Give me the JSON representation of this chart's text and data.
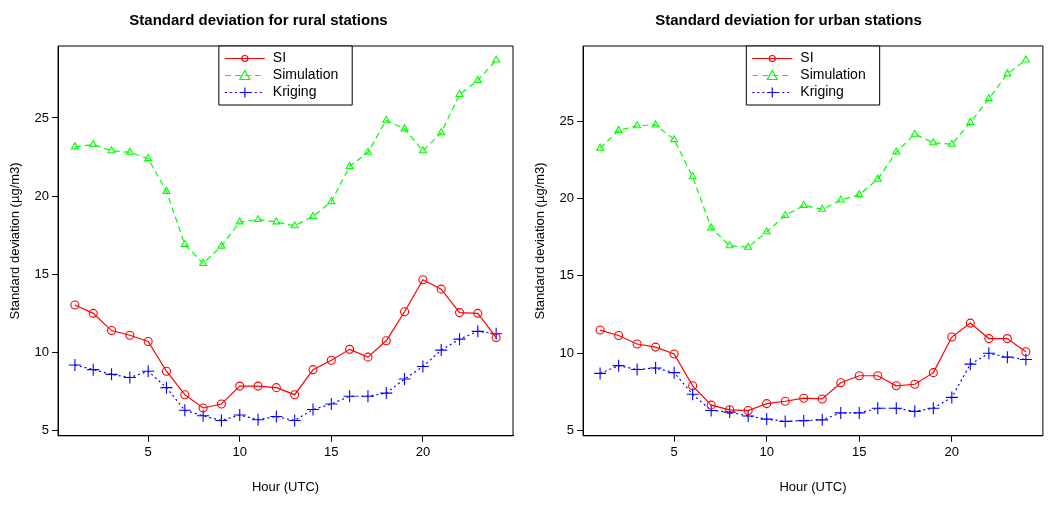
{
  "chart_data": [
    {
      "type": "line",
      "title": "Standard deviation for rural stations",
      "xlabel": "Hour (UTC)",
      "ylabel": "Standard deviation (µg/m3)",
      "x": [
        1,
        2,
        3,
        4,
        5,
        6,
        7,
        8,
        9,
        10,
        11,
        12,
        13,
        14,
        15,
        16,
        17,
        18,
        19,
        20,
        21,
        22,
        23,
        24
      ],
      "series": [
        {
          "name": "SI",
          "color": "#ff0000",
          "marker": "circle",
          "line_style": "solid",
          "values": [
            13.04,
            12.5,
            11.4,
            11.1,
            10.7,
            8.8,
            7.3,
            6.45,
            6.7,
            7.85,
            7.85,
            7.75,
            7.3,
            8.9,
            9.5,
            10.2,
            9.7,
            10.75,
            12.6,
            14.65,
            14.05,
            12.55,
            12.5,
            10.95
          ]
        },
        {
          "name": "Simulation",
          "color": "#00ff00",
          "marker": "triangle",
          "line_style": "dashed",
          "values": [
            23.15,
            23.3,
            22.9,
            22.8,
            22.4,
            20.3,
            16.9,
            15.7,
            16.8,
            18.35,
            18.5,
            18.35,
            18.1,
            18.7,
            19.65,
            21.9,
            22.8,
            24.85,
            24.3,
            22.9,
            24.05,
            26.5,
            27.4,
            28.7
          ]
        },
        {
          "name": "Kriging",
          "color": "#0000ff",
          "marker": "cross",
          "line_style": "dotted",
          "values": [
            9.2,
            8.9,
            8.6,
            8.4,
            8.8,
            7.75,
            6.3,
            5.95,
            5.65,
            6.0,
            5.7,
            5.9,
            5.65,
            6.35,
            6.7,
            7.2,
            7.2,
            7.4,
            8.3,
            9.1,
            10.15,
            10.85,
            11.35,
            11.2
          ]
        }
      ],
      "xlim": [
        0.08,
        24.92
      ],
      "xticks": [
        5,
        10,
        15,
        20
      ],
      "ylim": [
        4.67,
        29.6
      ],
      "yticks": [
        5,
        10,
        15,
        20,
        25
      ],
      "grid": false,
      "legend": "top"
    },
    {
      "type": "line",
      "title": "Standard deviation for urban stations",
      "xlabel": "Hour (UTC)",
      "ylabel": "Standard deviation (µg/m3)",
      "x": [
        1,
        2,
        3,
        4,
        5,
        6,
        7,
        8,
        9,
        10,
        11,
        12,
        13,
        14,
        15,
        16,
        17,
        18,
        19,
        20,
        21,
        22,
        23,
        24
      ],
      "series": [
        {
          "name": "SI",
          "color": "#ff0000",
          "marker": "circle",
          "line_style": "solid",
          "values": [
            11.5,
            11.15,
            10.6,
            10.4,
            9.95,
            7.9,
            6.65,
            6.35,
            6.3,
            6.75,
            6.9,
            7.1,
            7.05,
            8.1,
            8.55,
            8.55,
            7.9,
            8.0,
            8.75,
            11.05,
            11.95,
            10.95,
            10.95,
            10.1
          ]
        },
        {
          "name": "Simulation",
          "color": "#00ff00",
          "marker": "triangle",
          "line_style": "dashed",
          "values": [
            23.25,
            24.4,
            24.7,
            24.75,
            23.8,
            21.4,
            18.1,
            16.95,
            16.85,
            17.85,
            18.9,
            19.55,
            19.3,
            19.9,
            20.25,
            21.25,
            23.0,
            24.15,
            23.6,
            23.5,
            24.9,
            26.45,
            28.05,
            28.95
          ]
        },
        {
          "name": "Kriging",
          "color": "#0000ff",
          "marker": "cross",
          "line_style": "dotted",
          "values": [
            8.7,
            9.2,
            8.95,
            9.05,
            8.75,
            7.35,
            6.3,
            6.2,
            5.95,
            5.75,
            5.6,
            5.65,
            5.7,
            6.15,
            6.15,
            6.45,
            6.45,
            6.25,
            6.45,
            7.15,
            9.3,
            10.0,
            9.75,
            9.6
          ]
        }
      ],
      "xlim": [
        0.08,
        24.92
      ],
      "xticks": [
        5,
        10,
        15,
        20
      ],
      "ylim": [
        4.67,
        29.85
      ],
      "yticks": [
        5,
        10,
        15,
        20,
        25
      ],
      "grid": false,
      "legend": "top"
    }
  ]
}
